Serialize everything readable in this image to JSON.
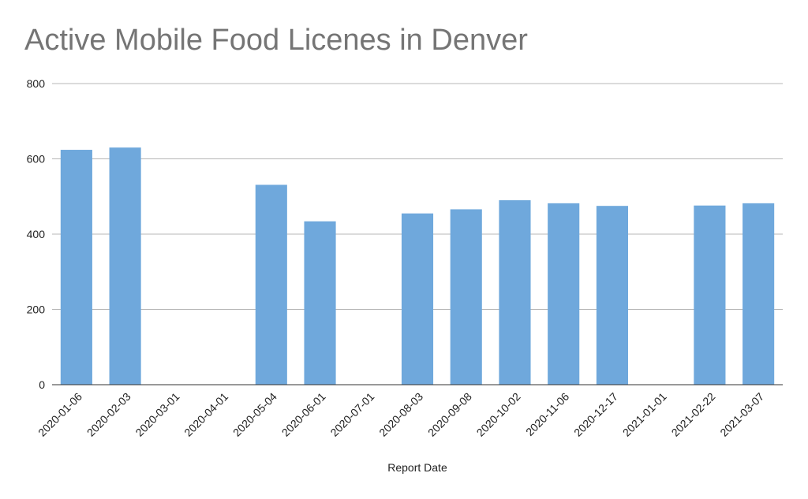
{
  "chart_data": {
    "type": "bar",
    "title": "Active Mobile Food Licenes in Denver",
    "xlabel": "Report Date",
    "ylabel": "",
    "categories": [
      "2020-01-06",
      "2020-02-03",
      "2020-03-01",
      "2020-04-01",
      "2020-05-04",
      "2020-06-01",
      "2020-07-01",
      "2020-08-03",
      "2020-09-08",
      "2020-10-02",
      "2020-11-06",
      "2020-12-17",
      "2021-01-01",
      "2021-02-22",
      "2021-03-07"
    ],
    "values": [
      624,
      630,
      null,
      null,
      531,
      434,
      null,
      455,
      466,
      490,
      482,
      475,
      null,
      476,
      482
    ],
    "ylim": [
      0,
      800
    ],
    "yticks": [
      0,
      200,
      400,
      600,
      800
    ],
    "grid": true,
    "legend": "none",
    "colors": {
      "bar": "#6fa8dc",
      "title": "#757575",
      "grid": "#b7b7b7",
      "axis": "#333333"
    }
  }
}
